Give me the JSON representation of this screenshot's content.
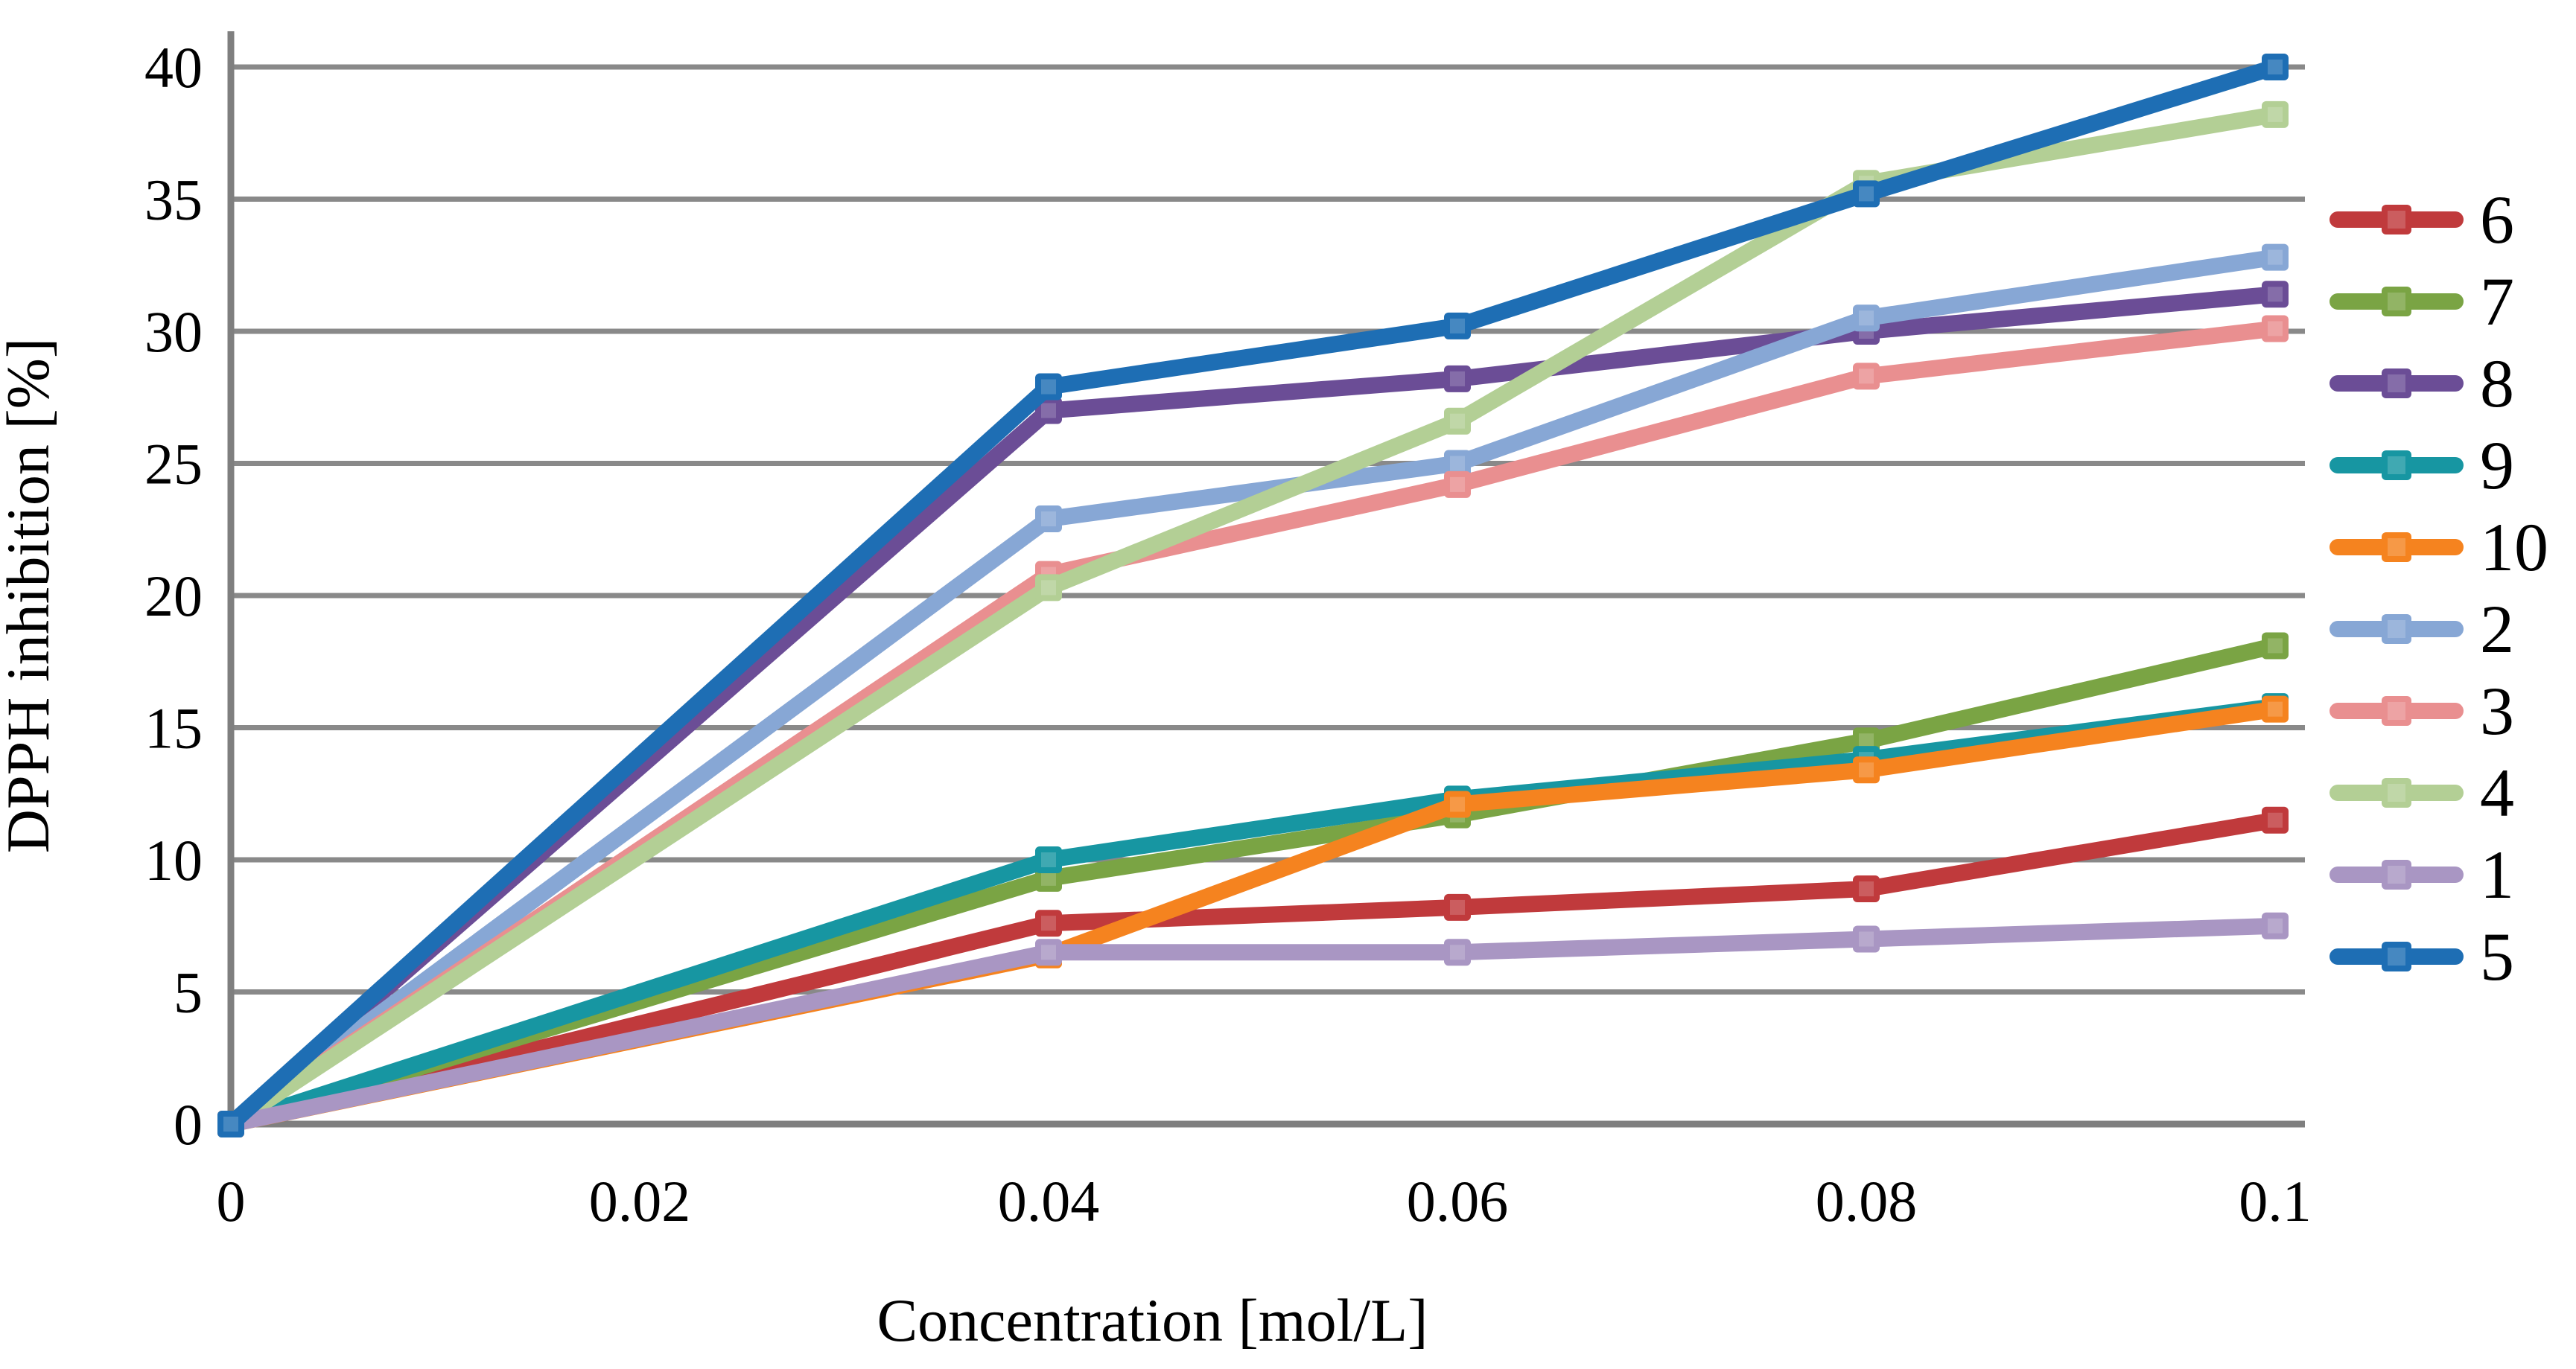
{
  "chart_data": {
    "type": "line",
    "title": "",
    "xlabel": "Concentration [mol/L]",
    "ylabel": "DPPH inhibition [%]",
    "x": [
      0,
      0.04,
      0.06,
      0.08,
      0.1
    ],
    "x_tick_values": [
      0,
      0.02,
      0.04,
      0.06,
      0.08,
      0.1
    ],
    "x_tick_labels": [
      "0",
      "0.02",
      "0.04",
      "0.06",
      "0.08",
      "0.1"
    ],
    "y_tick_values": [
      0,
      5,
      10,
      15,
      20,
      25,
      30,
      35,
      40
    ],
    "xlim": [
      0,
      0.1
    ],
    "ylim": [
      0,
      40
    ],
    "grid": true,
    "legend_position": "right",
    "series": [
      {
        "name": "6",
        "color": "#c03a3c",
        "values": [
          0,
          7.6,
          8.2,
          8.9,
          11.5
        ]
      },
      {
        "name": "7",
        "color": "#7aa444",
        "values": [
          0,
          9.3,
          11.7,
          14.5,
          18.1
        ]
      },
      {
        "name": "8",
        "color": "#6b4d96",
        "values": [
          0,
          27.0,
          28.2,
          30.0,
          31.4
        ]
      },
      {
        "name": "9",
        "color": "#1796a2",
        "values": [
          0,
          10.0,
          12.3,
          13.8,
          15.8
        ]
      },
      {
        "name": "10",
        "color": "#f5831f",
        "values": [
          0,
          6.4,
          12.1,
          13.4,
          15.7
        ]
      },
      {
        "name": "2",
        "color": "#87a7d5",
        "values": [
          0,
          22.9,
          25.0,
          30.5,
          32.8
        ]
      },
      {
        "name": "3",
        "color": "#e98f90",
        "values": [
          0,
          20.8,
          24.2,
          28.3,
          30.1
        ]
      },
      {
        "name": "4",
        "color": "#b3cf95",
        "values": [
          0,
          20.3,
          26.6,
          35.6,
          38.2
        ]
      },
      {
        "name": "1",
        "color": "#a996c3",
        "values": [
          0,
          6.5,
          6.5,
          7.0,
          7.5
        ]
      },
      {
        "name": "5",
        "color": "#1e6eb4",
        "values": [
          0,
          27.9,
          30.2,
          35.2,
          40.0
        ]
      }
    ]
  },
  "colors": {
    "background": "#ffffff",
    "gridline": "#898989",
    "axis": "#7f7f7f",
    "text": "#000000"
  }
}
